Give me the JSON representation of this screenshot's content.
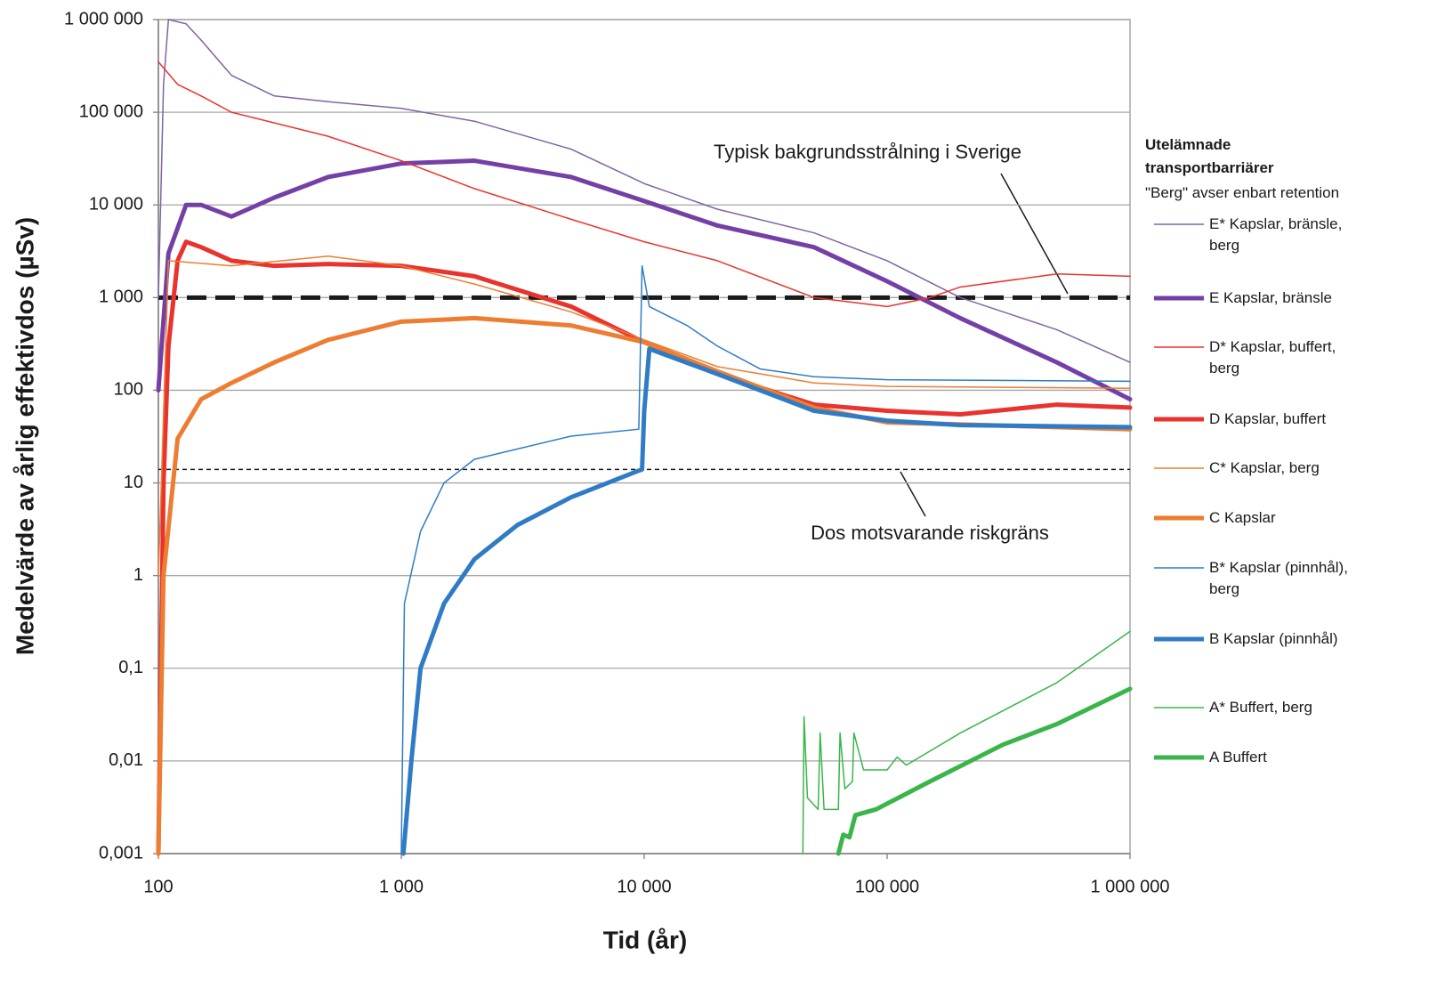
{
  "chart_data": {
    "type": "line",
    "xscale": "log",
    "yscale": "log",
    "x_label": "Tid (år)",
    "y_label": "Medelvärde av årlig effektivdos (µSv)",
    "xlim": [
      100,
      1000000
    ],
    "ylim": [
      0.001,
      1000000
    ],
    "xticks": [
      100,
      {
        "value": 1000,
        "label": "1 000"
      },
      {
        "value": 10000,
        "label": "10 000"
      },
      {
        "value": 100000,
        "label": "100 000"
      },
      {
        "value": 1000000,
        "label": "1 000 000"
      }
    ],
    "yticks": [
      {
        "value": 0.001,
        "label": "0,001"
      },
      {
        "value": 0.01,
        "label": "0,01"
      },
      {
        "value": 0.1,
        "label": "0,1"
      },
      1,
      10,
      100,
      {
        "value": 1000,
        "label": "1 000"
      },
      {
        "value": 10000,
        "label": "10 000"
      },
      {
        "value": 100000,
        "label": "100 000"
      },
      {
        "value": 1000000,
        "label": "1 000 000"
      }
    ],
    "grid": true,
    "legend_title": "Utelämnade transportbarriärer",
    "legend_subtitle": "\"Berg\" avser enbart retention",
    "legend_position": "right",
    "reference_lines": [
      {
        "value": 1000,
        "color": "#1a1a1a",
        "width": 5,
        "dashed": true
      },
      {
        "value": 14,
        "color": "#1a1a1a",
        "width": 1.5,
        "dashed": true
      }
    ],
    "annotations": [
      {
        "text": "Typisk bakgrundsstrålning i Sverige"
      },
      {
        "text": "Dos motsvarande riskgräns"
      }
    ],
    "series": [
      {
        "name": "E* Kapslar, bränsle, berg",
        "color": "#8064a2",
        "width": 1.5,
        "x": [
          100,
          105,
          110,
          130,
          150,
          200,
          300,
          500,
          1000,
          2000,
          5000,
          10000,
          20000,
          50000,
          100000,
          200000,
          500000,
          1000000
        ],
        "values": [
          1000,
          200000,
          1000000,
          900000,
          600000,
          250000,
          150000,
          130000,
          110000,
          80000,
          40000,
          17000,
          9000,
          5000,
          2500,
          1000,
          450,
          200
        ]
      },
      {
        "name": "E Kapslar, bränsle",
        "color": "#7440a6",
        "width": 5,
        "x": [
          100,
          110,
          130,
          150,
          200,
          300,
          500,
          1000,
          2000,
          5000,
          10000,
          20000,
          50000,
          100000,
          200000,
          500000,
          1000000
        ],
        "values": [
          100,
          3000,
          10000,
          10000,
          7500,
          12000,
          20000,
          28000,
          30000,
          20000,
          11000,
          6000,
          3500,
          1500,
          600,
          200,
          80
        ]
      },
      {
        "name": "D* Kapslar, buffert, berg",
        "color": "#e8332e",
        "width": 1.5,
        "x": [
          100,
          120,
          150,
          200,
          500,
          1000,
          2000,
          5000,
          10000,
          20000,
          50000,
          100000,
          150000,
          200000,
          500000,
          1000000
        ],
        "values": [
          350000,
          200000,
          150000,
          100000,
          55000,
          30000,
          15000,
          7000,
          4000,
          2500,
          1000,
          800,
          1000,
          1300,
          1800,
          1700
        ]
      },
      {
        "name": "D Kapslar, buffert",
        "color": "#e8332e",
        "width": 5,
        "x": [
          100,
          105,
          110,
          120,
          130,
          150,
          200,
          300,
          500,
          1000,
          2000,
          5000,
          10000,
          20000,
          50000,
          100000,
          200000,
          500000,
          1000000
        ],
        "values": [
          0.001,
          10,
          300,
          2500,
          4000,
          3500,
          2500,
          2200,
          2300,
          2200,
          1700,
          800,
          330,
          150,
          70,
          60,
          55,
          70,
          65
        ]
      },
      {
        "name": "C* Kapslar, berg",
        "color": "#ed7d31",
        "width": 1.5,
        "x": [
          100,
          110,
          200,
          500,
          1000,
          2000,
          5000,
          10000,
          20000,
          50000,
          100000,
          1000000
        ],
        "values": [
          1,
          2500,
          2200,
          2800,
          2200,
          1400,
          700,
          350,
          180,
          120,
          110,
          105
        ]
      },
      {
        "name": "C Kapslar",
        "color": "#ed7d31",
        "width": 5,
        "x": [
          100,
          105,
          120,
          150,
          200,
          300,
          500,
          1000,
          2000,
          5000,
          10000,
          20000,
          50000,
          100000,
          1000000
        ],
        "values": [
          0.001,
          1,
          30,
          80,
          120,
          200,
          350,
          550,
          600,
          500,
          330,
          160,
          65,
          45,
          38
        ]
      },
      {
        "name": "B* Kapslar (pinnhål), berg",
        "color": "#2f7bc6",
        "width": 1.5,
        "x": [
          1000,
          1030,
          1200,
          1500,
          2000,
          5000,
          9500,
          9800,
          10500,
          15000,
          20000,
          30000,
          50000,
          100000,
          1000000
        ],
        "values": [
          0.001,
          0.5,
          3,
          10,
          18,
          32,
          38,
          2200,
          800,
          500,
          300,
          170,
          140,
          130,
          125
        ]
      },
      {
        "name": "B Kapslar (pinnhål)",
        "color": "#2f7bc6",
        "width": 5,
        "x": [
          1020,
          1100,
          1200,
          1500,
          2000,
          3000,
          5000,
          9800,
          10000,
          10500,
          20000,
          50000,
          100000,
          200000,
          1000000
        ],
        "values": [
          0.001,
          0.01,
          0.1,
          0.5,
          1.5,
          3.5,
          7,
          14,
          60,
          280,
          150,
          60,
          47,
          42,
          40
        ]
      },
      {
        "name": "A* Buffert, berg",
        "color": "#39b54a",
        "width": 1.5,
        "x": [
          45000,
          45500,
          47000,
          52000,
          53000,
          55000,
          63000,
          64000,
          67000,
          72000,
          73000,
          80000,
          100000,
          110000,
          120000,
          200000,
          500000,
          1000000
        ],
        "values": [
          0.001,
          0.03,
          0.004,
          0.003,
          0.02,
          0.003,
          0.003,
          0.02,
          0.005,
          0.006,
          0.02,
          0.008,
          0.008,
          0.011,
          0.009,
          0.02,
          0.07,
          0.25
        ]
      },
      {
        "name": "A Buffert",
        "color": "#39b54a",
        "width": 5,
        "x": [
          63000,
          66000,
          70000,
          74000,
          90000,
          150000,
          300000,
          500000,
          1000000
        ],
        "values": [
          0.001,
          0.0016,
          0.0015,
          0.0026,
          0.003,
          0.006,
          0.015,
          0.025,
          0.06
        ]
      }
    ]
  }
}
